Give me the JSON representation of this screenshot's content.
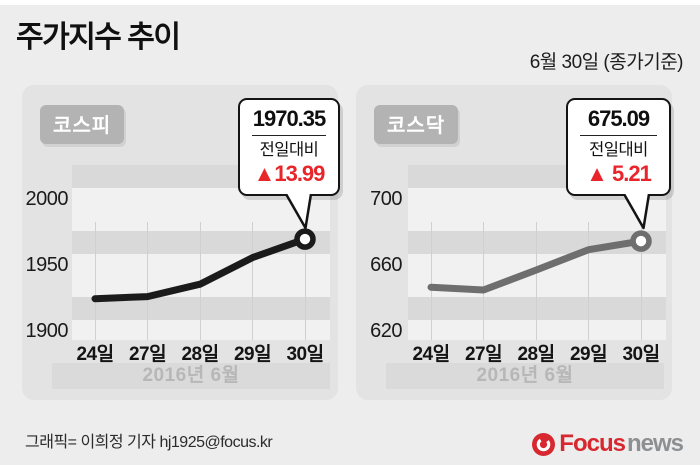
{
  "header": {
    "title": "주가지수 추이",
    "date_note": "6월 30일 (종가기준)"
  },
  "chart_data": [
    {
      "type": "line",
      "title": "코스피",
      "categories": [
        "24일",
        "27일",
        "28일",
        "29일",
        "30일"
      ],
      "values": [
        1925.24,
        1926.85,
        1936.22,
        1956.36,
        1970.35
      ],
      "y_ticks": [
        2000,
        1950,
        1900
      ],
      "ylim": [
        1894,
        2026
      ],
      "x_period_label": "2016년 6월",
      "line_color": "#1b1b1b",
      "grid": "vertical-light",
      "legend": false,
      "annotation": {
        "value": "1970.35",
        "change_label": "전일대비",
        "change_text": "▲13.99",
        "change_color": "#e8252b"
      }
    },
    {
      "type": "line",
      "title": "코스닥",
      "categories": [
        "24일",
        "27일",
        "28일",
        "29일",
        "30일"
      ],
      "values": [
        647.16,
        645.45,
        657.5,
        669.88,
        675.09
      ],
      "y_ticks": [
        700,
        660,
        620
      ],
      "ylim": [
        615,
        721
      ],
      "x_period_label": "2016년 6월",
      "line_color": "#6e6e6e",
      "grid": "vertical-light",
      "legend": false,
      "annotation": {
        "value": "675.09",
        "change_label": "전일대비",
        "change_text": "▲ 5.21",
        "change_color": "#e8252b"
      }
    }
  ],
  "footer": {
    "credit": "그래픽= 이희정 기자 hj1925@focus.kr",
    "logo": {
      "brand": "Focus",
      "suffix": "news",
      "brand_color": "#d7282f",
      "suffix_color": "#8d9093"
    }
  }
}
